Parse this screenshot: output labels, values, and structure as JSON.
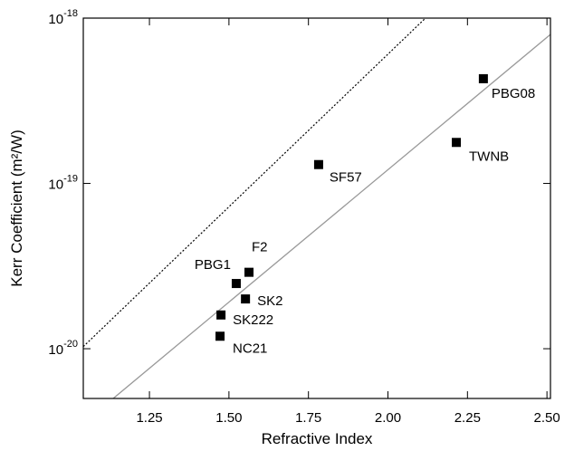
{
  "chart_data": {
    "type": "scatter",
    "x_label": "Refractive Index",
    "y_label": "Kerr Coefficient (m²/W)",
    "labels": [
      "PBG08",
      "TWNB",
      "SF57",
      "F2",
      "PBG1",
      "SK2",
      "SK222",
      "NC21"
    ],
    "x": [
      2.3,
      2.215,
      1.782,
      1.563,
      1.523,
      1.552,
      1.475,
      1.472
    ],
    "values": [
      4.3e-19,
      1.77e-19,
      1.3e-19,
      2.9e-20,
      2.48e-20,
      2e-20,
      1.6e-20,
      1.19e-20
    ],
    "color": "#000000",
    "lines": [
      {
        "x": [
          1.136,
          2.511
        ],
        "y": [
          5e-21,
          7.97e-19
        ],
        "color": "#999999",
        "style": "solid"
      },
      {
        "x": [
          1.042,
          2.118
        ],
        "y": [
          1.03e-20,
          1e-18
        ],
        "color": "#000000",
        "style": "dotted"
      }
    ],
    "xlim": [
      1.042,
      2.511
    ],
    "ylim": [
      5e-21,
      1e-18
    ],
    "ylog": true,
    "xticks": [
      1.25,
      1.5,
      1.75,
      2.0,
      2.25,
      2.5
    ],
    "xtick_labels": [
      "1.25",
      "1.50",
      "1.75",
      "2.00",
      "2.25",
      "2.50"
    ],
    "yticks": [
      {
        "value": 1e-20,
        "label": "10^-20"
      },
      {
        "value": 1e-19,
        "label": "10^-19"
      },
      {
        "value": 1e-18,
        "label": "10^-18"
      }
    ]
  }
}
